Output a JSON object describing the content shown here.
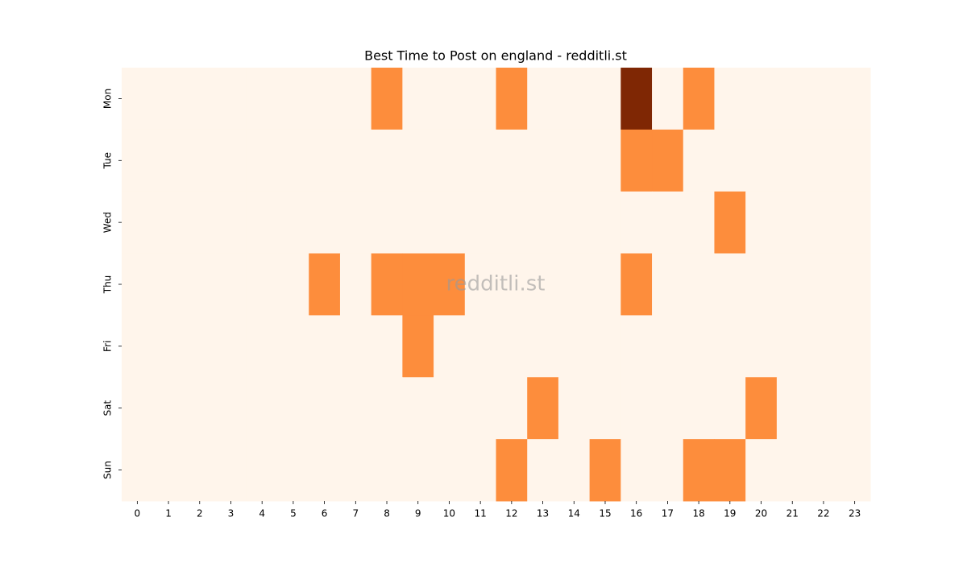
{
  "chart_data": {
    "type": "heatmap",
    "title": "Best Time to Post on england - redditli.st",
    "watermark": "redditli.st",
    "x": [
      0,
      1,
      2,
      3,
      4,
      5,
      6,
      7,
      8,
      9,
      10,
      11,
      12,
      13,
      14,
      15,
      16,
      17,
      18,
      19,
      20,
      21,
      22,
      23
    ],
    "y": [
      "Mon",
      "Tue",
      "Wed",
      "Thu",
      "Fri",
      "Sat",
      "Sun"
    ],
    "values": [
      [
        0,
        0,
        0,
        0,
        0,
        0,
        0,
        0,
        1,
        0,
        0,
        0,
        1,
        0,
        0,
        0,
        2,
        0,
        1,
        0,
        0,
        0,
        0,
        0
      ],
      [
        0,
        0,
        0,
        0,
        0,
        0,
        0,
        0,
        0,
        0,
        0,
        0,
        0,
        0,
        0,
        0,
        1,
        1,
        0,
        0,
        0,
        0,
        0,
        0
      ],
      [
        0,
        0,
        0,
        0,
        0,
        0,
        0,
        0,
        0,
        0,
        0,
        0,
        0,
        0,
        0,
        0,
        0,
        0,
        0,
        1,
        0,
        0,
        0,
        0
      ],
      [
        0,
        0,
        0,
        0,
        0,
        0,
        1,
        0,
        1,
        1,
        1,
        0,
        0,
        0,
        0,
        0,
        1,
        0,
        0,
        0,
        0,
        0,
        0,
        0
      ],
      [
        0,
        0,
        0,
        0,
        0,
        0,
        0,
        0,
        0,
        1,
        0,
        0,
        0,
        0,
        0,
        0,
        0,
        0,
        0,
        0,
        0,
        0,
        0,
        0
      ],
      [
        0,
        0,
        0,
        0,
        0,
        0,
        0,
        0,
        0,
        0,
        0,
        0,
        0,
        1,
        0,
        0,
        0,
        0,
        0,
        0,
        1,
        0,
        0,
        0
      ],
      [
        0,
        0,
        0,
        0,
        0,
        0,
        0,
        0,
        0,
        0,
        0,
        0,
        1,
        0,
        0,
        1,
        0,
        0,
        1,
        1,
        0,
        0,
        0,
        0
      ]
    ],
    "zlim": [
      0,
      2
    ],
    "colorscale": [
      "#fff5eb",
      "#fd8d3c",
      "#7f2704"
    ]
  }
}
